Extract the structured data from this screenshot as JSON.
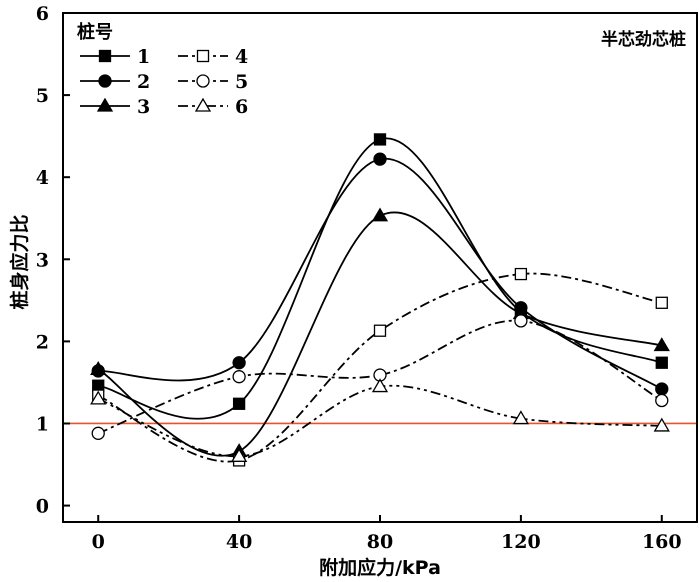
{
  "chart_data": {
    "type": "line",
    "annotation": "半芯劲芯桩",
    "xlabel": "附加应力/kPa",
    "ylabel": "桩身应力比",
    "xlim": [
      -10,
      170
    ],
    "ylim": [
      -0.2,
      6
    ],
    "x_ticks": [
      0,
      40,
      80,
      120,
      160
    ],
    "y_ticks": [
      0,
      1,
      2,
      3,
      4,
      5,
      6
    ],
    "legend_title": "桩号",
    "legend_position": "top-left",
    "reference_line": {
      "y": 1,
      "color": "#e8522e"
    },
    "series": [
      {
        "name": "1",
        "marker": "square",
        "filled": true,
        "dash": "solid",
        "x": [
          0,
          40,
          80,
          120,
          160
        ],
        "y": [
          1.46,
          1.24,
          4.46,
          2.36,
          1.74
        ]
      },
      {
        "name": "2",
        "marker": "circle",
        "filled": true,
        "dash": "solid",
        "x": [
          0,
          40,
          80,
          120,
          160
        ],
        "y": [
          1.64,
          1.74,
          4.22,
          2.41,
          1.42
        ]
      },
      {
        "name": "3",
        "marker": "triangle",
        "filled": true,
        "dash": "solid",
        "x": [
          0,
          40,
          80,
          120,
          160
        ],
        "y": [
          1.66,
          0.66,
          3.53,
          2.34,
          1.95
        ]
      },
      {
        "name": "4",
        "marker": "square",
        "filled": false,
        "dash": "dashdot",
        "x": [
          0,
          40,
          80,
          120,
          160
        ],
        "y": [
          1.34,
          0.55,
          2.13,
          2.82,
          2.47
        ]
      },
      {
        "name": "5",
        "marker": "circle",
        "filled": false,
        "dash": "dashdot",
        "x": [
          0,
          40,
          80,
          120,
          160
        ],
        "y": [
          0.88,
          1.57,
          1.59,
          2.25,
          1.28
        ]
      },
      {
        "name": "6",
        "marker": "triangle",
        "filled": false,
        "dash": "dashdotdot",
        "x": [
          0,
          40,
          80,
          120,
          160
        ],
        "y": [
          1.3,
          0.6,
          1.45,
          1.06,
          0.97
        ]
      }
    ]
  }
}
